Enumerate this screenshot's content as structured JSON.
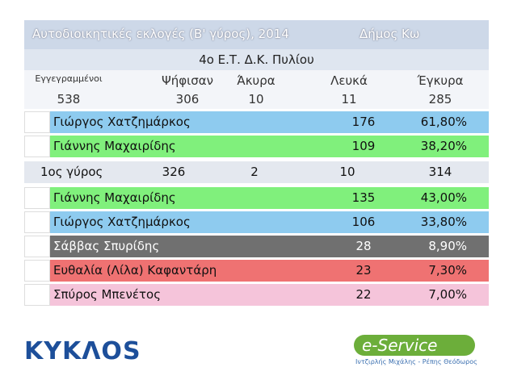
{
  "header": {
    "title": "Αυτοδιοικητικές εκλογές (Β' γύρος), 2014",
    "municipality": "Δήμος Κω",
    "station": "4ο Ε.Τ. Δ.Κ. Πυλίου"
  },
  "stats": {
    "labels": [
      "Εγγεγραμμένοι",
      "Ψήφισαν",
      "Άκυρα",
      "Λευκά",
      "Έγκυρα"
    ],
    "values": [
      538,
      306,
      10,
      11,
      285
    ]
  },
  "second_round": [
    {
      "name": "Γιώργος Χατζημάρκος",
      "votes": 176,
      "percent": "61,80%"
    },
    {
      "name": "Γιάννης Μαχαιρίδης",
      "votes": 109,
      "percent": "38,20%"
    }
  ],
  "first_round_summary": {
    "label": "1ος γύρος",
    "values": [
      326,
      2,
      10,
      314
    ]
  },
  "first_round": [
    {
      "name": "Γιάννης Μαχαιρίδης",
      "votes": 135,
      "percent": "43,00%"
    },
    {
      "name": "Γιώργος Χατζημάρκος",
      "votes": 106,
      "percent": "33,80%"
    },
    {
      "name": "Σάββας Σπυρίδης",
      "votes": 28,
      "percent": "8,90%"
    },
    {
      "name": "Ευθαλία (Λίλα) Καφαντάρη",
      "votes": 23,
      "percent": "7,30%"
    },
    {
      "name": "Σπύρος Μπενέτος",
      "votes": 22,
      "percent": "7,00%"
    }
  ],
  "footer": {
    "left_logo": "ΚΥΚΛΟS",
    "right_logo": "e-Service",
    "right_caption": "Ιντζιρλής Μιχάλης - Ρέπης Θεόδωρος"
  }
}
